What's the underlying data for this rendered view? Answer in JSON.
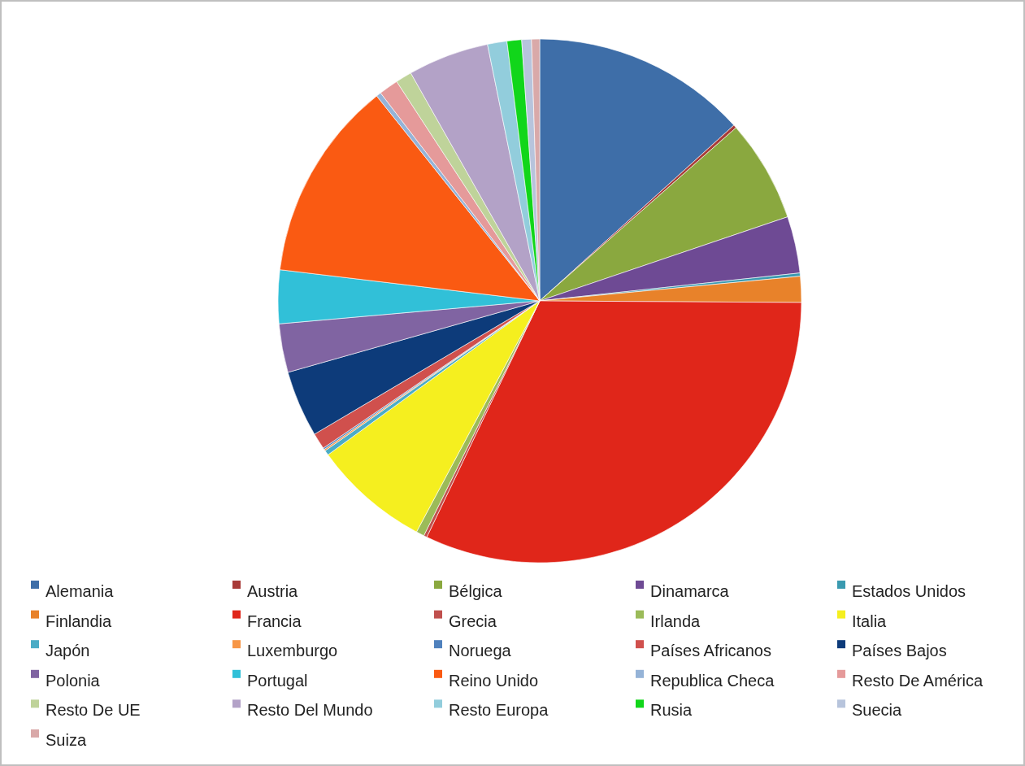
{
  "chart_data": {
    "type": "pie",
    "legend": "bottom",
    "categories": [
      "Alemania",
      "Austria",
      "Bélgica",
      "Dinamarca",
      "Estados Unidos",
      "Finlandia",
      "Francia",
      "Grecia",
      "Irlanda",
      "Italia",
      "Japón",
      "Luxemburgo",
      "Noruega",
      "Países Africanos",
      "Países Bajos",
      "Polonia",
      "Portugal",
      "Reino Unido",
      "Republica Checa",
      "Resto De América",
      "Resto De UE",
      "Resto Del Mundo",
      "Resto Europa",
      "Rusia",
      "Suecia",
      "Suiza"
    ],
    "values": [
      13.3,
      0.2,
      6.3,
      3.5,
      0.2,
      1.6,
      32.0,
      0.2,
      0.5,
      7.2,
      0.3,
      0.1,
      0.1,
      1.0,
      4.1,
      3.0,
      3.3,
      12.4,
      0.3,
      1.2,
      1.0,
      5.0,
      1.2,
      0.9,
      0.6,
      0.5
    ],
    "colors": [
      "#3e6ea8",
      "#a83b38",
      "#8aa83f",
      "#6e4a94",
      "#3a9ab0",
      "#e8822a",
      "#e0261a",
      "#c0504d",
      "#9bbb59",
      "#f5ef1f",
      "#4bacc6",
      "#f79646",
      "#4f81bd",
      "#d0504d",
      "#0d3b7a",
      "#8064a2",
      "#31c0d8",
      "#fa5a12",
      "#95b3d7",
      "#e59a9a",
      "#bfd39a",
      "#b3a2c7",
      "#92cddc",
      "#11d61a",
      "#b7c4dc",
      "#d9a9a9"
    ]
  }
}
